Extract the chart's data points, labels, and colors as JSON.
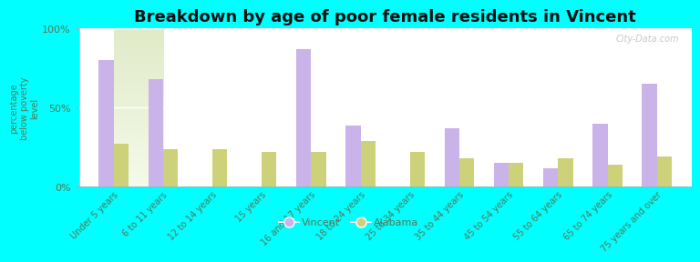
{
  "title": "Breakdown by age of poor female residents in Vincent",
  "ylabel": "percentage\nbelow poverty\nlevel",
  "categories": [
    "Under 5 years",
    "6 to 11 years",
    "12 to 14 years",
    "15 years",
    "16 and 17 years",
    "18 to 24 years",
    "25 to 34 years",
    "35 to 44 years",
    "45 to 54 years",
    "55 to 64 years",
    "65 to 74 years",
    "75 years and over"
  ],
  "vincent_values": [
    80,
    68,
    0,
    0,
    87,
    39,
    0,
    37,
    15,
    12,
    40,
    65
  ],
  "alabama_values": [
    27,
    24,
    24,
    22,
    22,
    29,
    22,
    18,
    15,
    18,
    14,
    19
  ],
  "vincent_color": "#c9b3e8",
  "alabama_color": "#cdd17a",
  "background_color": "#00ffff",
  "title_color": "#111111",
  "tick_color": "#557755",
  "watermark": "City-Data.com",
  "ylim": [
    0,
    100
  ],
  "yticks": [
    0,
    50,
    100
  ],
  "ytick_labels": [
    "0%",
    "50%",
    "100%"
  ],
  "bar_width": 0.3,
  "title_fontsize": 13,
  "legend_labels": [
    "Vincent",
    "Alabama"
  ]
}
